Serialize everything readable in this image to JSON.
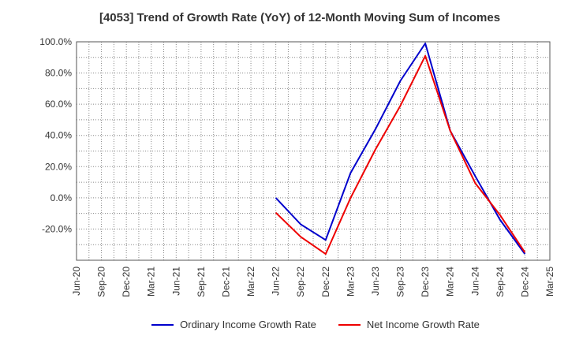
{
  "chart_data": {
    "type": "line",
    "title": "[4053]  Trend of Growth Rate (YoY) of 12-Month Moving Sum of Incomes",
    "xlabel": "",
    "ylabel": "",
    "x": [
      "Jun-20",
      "Sep-20",
      "Dec-20",
      "Mar-21",
      "Jun-21",
      "Sep-21",
      "Dec-21",
      "Mar-22",
      "Jun-22",
      "Sep-22",
      "Dec-22",
      "Mar-23",
      "Jun-23",
      "Sep-23",
      "Dec-23",
      "Mar-24",
      "Jun-24",
      "Sep-24",
      "Dec-24",
      "Mar-25"
    ],
    "ylim": [
      -40,
      100
    ],
    "yticks": [
      100,
      80,
      60,
      40,
      20,
      0,
      -20
    ],
    "ytick_labels": [
      "100.0%",
      "80.0%",
      "60.0%",
      "40.0%",
      "20.0%",
      "0.0%",
      "-20.0%"
    ],
    "grid": true,
    "legend_position": "bottom",
    "series": [
      {
        "name": "Ordinary Income Growth Rate",
        "color": "#0000cc",
        "values": [
          null,
          null,
          null,
          null,
          null,
          null,
          null,
          null,
          0.0,
          -17.0,
          -27.0,
          16.0,
          44.0,
          75.0,
          99.0,
          43.0,
          14.0,
          -14.0,
          -36.0,
          null
        ]
      },
      {
        "name": "Net Income Growth Rate",
        "color": "#ee0000",
        "values": [
          null,
          null,
          null,
          null,
          null,
          null,
          null,
          null,
          -9.5,
          -25.0,
          -36.0,
          0.0,
          31.0,
          59.0,
          91.0,
          43.0,
          9.5,
          -11.0,
          -35.0,
          null
        ]
      }
    ]
  }
}
